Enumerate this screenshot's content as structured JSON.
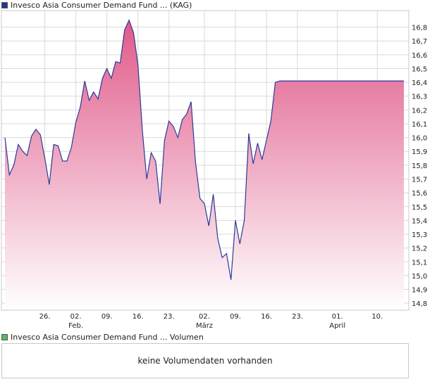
{
  "legend": {
    "price_label": "Invesco Asia Consumer Demand Fund ... (KAG)",
    "price_color": "#1f3a93",
    "volume_label": "Invesco Asia Consumer Demand Fund ... Volumen",
    "volume_color": "#58b858"
  },
  "volume_panel": {
    "message": "keine Volumendaten vorhanden"
  },
  "colors": {
    "line": "#2b3a9a",
    "fill_top": "#e05a8a",
    "fill_bottom": "#ffffff",
    "grid": "#d9d9d9",
    "border": "#c8c8c8"
  },
  "chart_data": {
    "type": "area",
    "title": "",
    "xlabel": "",
    "ylabel": "",
    "ylim": [
      14.75,
      16.92
    ],
    "y_ticks": [
      "14,8",
      "14,9",
      "15,0",
      "15,1",
      "15,2",
      "15,3",
      "15,4",
      "15,5",
      "15,6",
      "15,7",
      "15,8",
      "15,9",
      "16,0",
      "16,1",
      "16,2",
      "16,3",
      "16,4",
      "16,5",
      "16,6",
      "16,7",
      "16,8"
    ],
    "x_ticks": [
      {
        "date": "2024-01-26",
        "label": "26.",
        "month": ""
      },
      {
        "date": "2024-02-02",
        "label": "02.",
        "month": "Feb."
      },
      {
        "date": "2024-02-09",
        "label": "09.",
        "month": ""
      },
      {
        "date": "2024-02-16",
        "label": "16.",
        "month": ""
      },
      {
        "date": "2024-02-23",
        "label": "23.",
        "month": ""
      },
      {
        "date": "2024-03-02",
        "label": "02.",
        "month": "März"
      },
      {
        "date": "2024-03-09",
        "label": "09.",
        "month": ""
      },
      {
        "date": "2024-03-16",
        "label": "16.",
        "month": ""
      },
      {
        "date": "2024-03-23",
        "label": "23.",
        "month": ""
      },
      {
        "date": "2024-04-01",
        "label": "01.",
        "month": "April"
      },
      {
        "date": "2024-04-10",
        "label": "10.",
        "month": ""
      }
    ],
    "series": [
      {
        "x": [
          "2024-01-17",
          "2024-01-18",
          "2024-01-19",
          "2024-01-20",
          "2024-01-21",
          "2024-01-22",
          "2024-01-23",
          "2024-01-24",
          "2024-01-25",
          "2024-01-26",
          "2024-01-27",
          "2024-01-28",
          "2024-01-29",
          "2024-01-30",
          "2024-01-31",
          "2024-02-01",
          "2024-02-02",
          "2024-02-03",
          "2024-02-04",
          "2024-02-05",
          "2024-02-06",
          "2024-02-07",
          "2024-02-08",
          "2024-02-09",
          "2024-02-10",
          "2024-02-11",
          "2024-02-12",
          "2024-02-13",
          "2024-02-14",
          "2024-02-15",
          "2024-02-16",
          "2024-02-17",
          "2024-02-18",
          "2024-02-19",
          "2024-02-20",
          "2024-02-21",
          "2024-02-22",
          "2024-02-23",
          "2024-02-24",
          "2024-02-25",
          "2024-02-26",
          "2024-02-27",
          "2024-02-28",
          "2024-02-29",
          "2024-03-01",
          "2024-03-02",
          "2024-03-03",
          "2024-03-04",
          "2024-03-05",
          "2024-03-06",
          "2024-03-07",
          "2024-03-08",
          "2024-03-09",
          "2024-03-10",
          "2024-03-11",
          "2024-03-12",
          "2024-03-13",
          "2024-03-14",
          "2024-03-15",
          "2024-03-16",
          "2024-03-17",
          "2024-03-18",
          "2024-03-19",
          "2024-03-20",
          "2024-03-21",
          "2024-03-22",
          "2024-03-23",
          "2024-03-24",
          "2024-03-25",
          "2024-03-26",
          "2024-03-27",
          "2024-03-28",
          "2024-03-29",
          "2024-03-30",
          "2024-03-31",
          "2024-04-01",
          "2024-04-02",
          "2024-04-03",
          "2024-04-04",
          "2024-04-05",
          "2024-04-06",
          "2024-04-07",
          "2024-04-08",
          "2024-04-09",
          "2024-04-10",
          "2024-04-11",
          "2024-04-12",
          "2024-04-13",
          "2024-04-14",
          "2024-04-15",
          "2024-04-16"
        ],
        "values": [
          16.0,
          15.73,
          15.8,
          15.95,
          15.9,
          15.87,
          16.01,
          16.06,
          16.02,
          15.85,
          15.66,
          15.95,
          15.94,
          15.83,
          15.83,
          15.93,
          16.11,
          16.22,
          16.41,
          16.27,
          16.33,
          16.28,
          16.43,
          16.5,
          16.43,
          16.55,
          16.54,
          16.78,
          16.85,
          16.76,
          16.53,
          16.05,
          15.7,
          15.89,
          15.83,
          15.52,
          15.98,
          16.12,
          16.08,
          16.0,
          16.13,
          16.17,
          16.26,
          15.82,
          15.56,
          15.52,
          15.36,
          15.59,
          15.27,
          15.13,
          15.16,
          14.97,
          15.4,
          15.23,
          15.4,
          16.03,
          15.81,
          15.96,
          15.84,
          15.98,
          16.12,
          16.4,
          16.41,
          16.41,
          16.41,
          16.41,
          16.41,
          16.41,
          16.41,
          16.41,
          16.41,
          16.41,
          16.41,
          16.41,
          16.41,
          16.41,
          16.41,
          16.41,
          16.41,
          16.41,
          16.41,
          16.41,
          16.41,
          16.41,
          16.41,
          16.41,
          16.41,
          16.41,
          16.41,
          16.41,
          16.41
        ]
      }
    ],
    "grid": true,
    "legend_position": "top-left"
  }
}
